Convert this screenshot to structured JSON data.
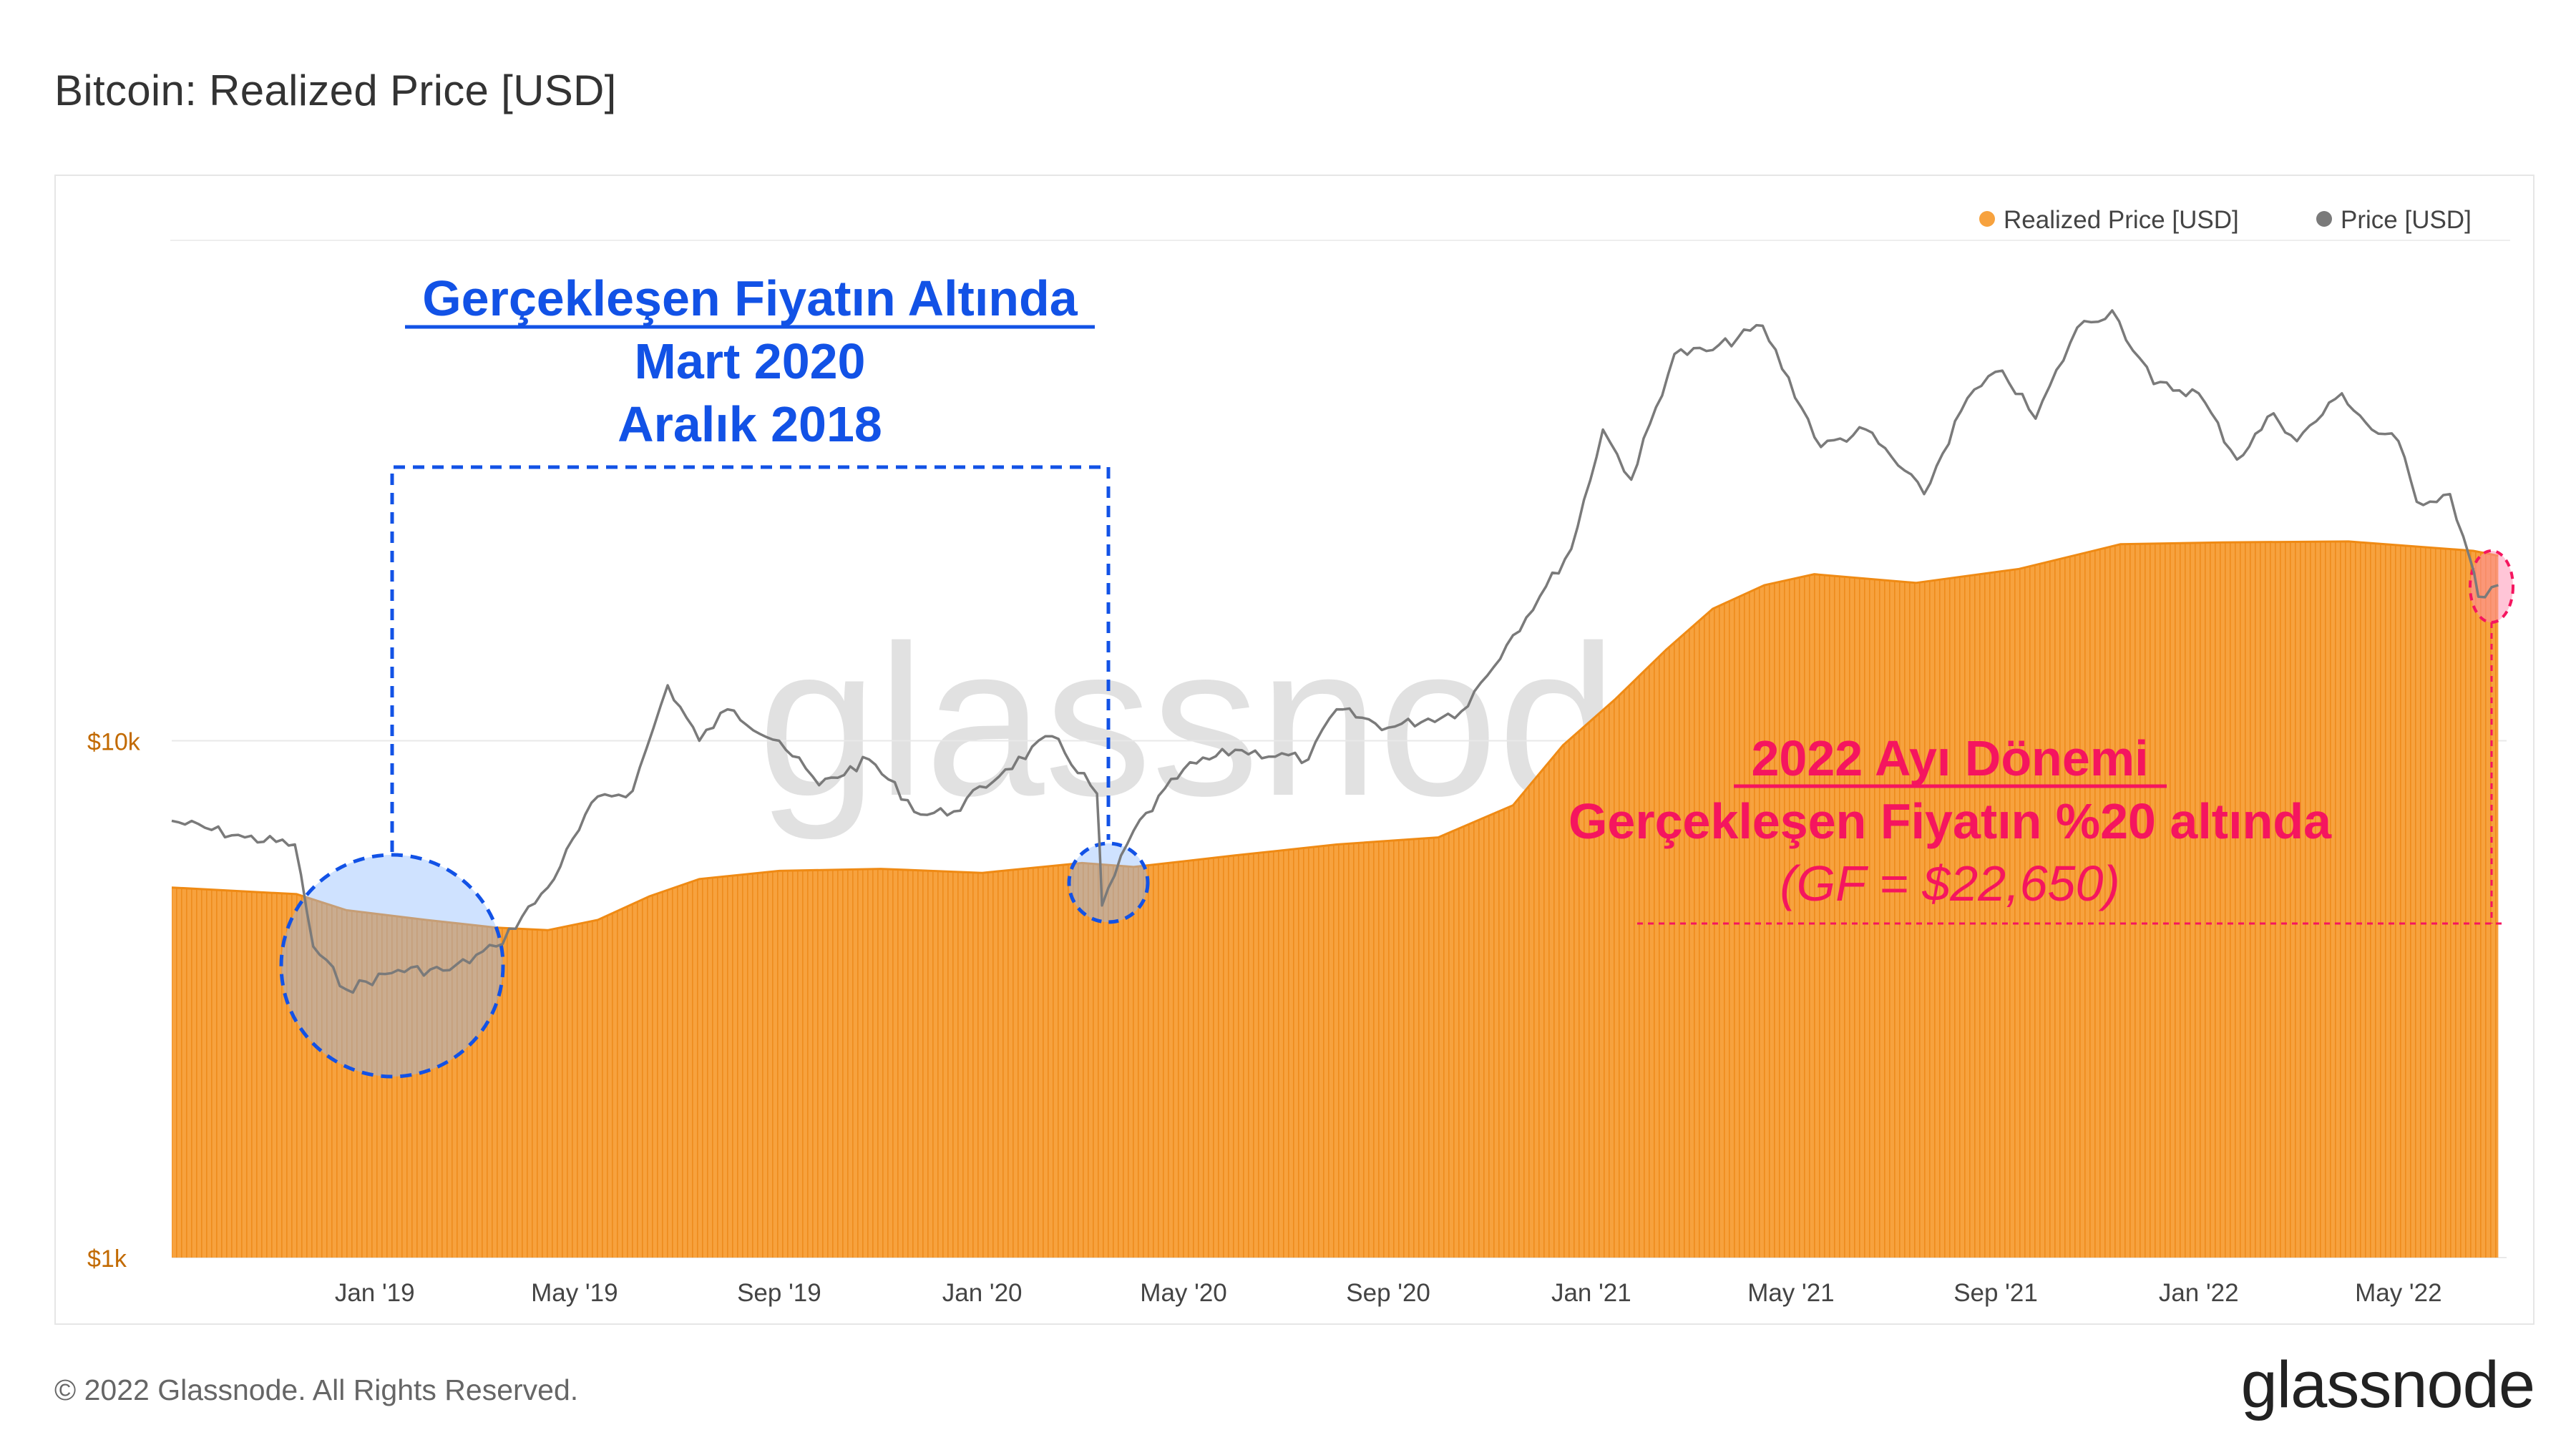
{
  "title": "Bitcoin: Realized Price [USD]",
  "footer": {
    "copyright": "© 2022 Glassnode. All Rights Reserved.",
    "logo": "glassnode",
    "watermark": "glassnode"
  },
  "colors": {
    "realized": "#f7a23e",
    "realized_stroke": "#ef8a14",
    "price": "#7a7a7a",
    "annotation_blue": "#1252e6",
    "annotation_pink": "#f5155f",
    "ytick": "#c26a00"
  },
  "chart_data": {
    "type": "area",
    "y_scale": "log",
    "ylim": [
      1000,
      90000
    ],
    "yticks": [
      {
        "value": 1000,
        "label": "$1k"
      },
      {
        "value": 10000,
        "label": "$10k"
      }
    ],
    "xlim": [
      "2018-09-01",
      "2022-07-05"
    ],
    "xticks": [
      {
        "date": "2019-01-01",
        "label": "Jan '19"
      },
      {
        "date": "2019-05-01",
        "label": "May '19"
      },
      {
        "date": "2019-09-01",
        "label": "Sep '19"
      },
      {
        "date": "2020-01-01",
        "label": "Jan '20"
      },
      {
        "date": "2020-05-01",
        "label": "May '20"
      },
      {
        "date": "2020-09-01",
        "label": "Sep '20"
      },
      {
        "date": "2021-01-01",
        "label": "Jan '21"
      },
      {
        "date": "2021-05-01",
        "label": "May '21"
      },
      {
        "date": "2021-09-01",
        "label": "Sep '21"
      },
      {
        "date": "2022-01-01",
        "label": "Jan '22"
      },
      {
        "date": "2022-05-01",
        "label": "May '22"
      }
    ],
    "legend_position": "top-right",
    "series": [
      {
        "name": "Realized Price [USD]",
        "style": "area",
        "points": [
          [
            "2018-09-01",
            5200
          ],
          [
            "2018-11-15",
            5050
          ],
          [
            "2018-12-15",
            4700
          ],
          [
            "2019-02-01",
            4500
          ],
          [
            "2019-03-15",
            4350
          ],
          [
            "2019-04-15",
            4300
          ],
          [
            "2019-05-15",
            4500
          ],
          [
            "2019-06-15",
            5000
          ],
          [
            "2019-07-15",
            5400
          ],
          [
            "2019-09-01",
            5600
          ],
          [
            "2019-11-01",
            5650
          ],
          [
            "2020-01-01",
            5550
          ],
          [
            "2020-03-01",
            5800
          ],
          [
            "2020-04-01",
            5700
          ],
          [
            "2020-06-01",
            6000
          ],
          [
            "2020-08-01",
            6300
          ],
          [
            "2020-10-01",
            6500
          ],
          [
            "2020-11-15",
            7500
          ],
          [
            "2020-12-15",
            9800
          ],
          [
            "2021-01-15",
            12000
          ],
          [
            "2021-02-15",
            15000
          ],
          [
            "2021-03-15",
            18000
          ],
          [
            "2021-04-15",
            20000
          ],
          [
            "2021-05-15",
            21000
          ],
          [
            "2021-07-15",
            20200
          ],
          [
            "2021-09-15",
            21500
          ],
          [
            "2021-11-15",
            24000
          ],
          [
            "2022-01-15",
            24200
          ],
          [
            "2022-04-01",
            24300
          ],
          [
            "2022-06-15",
            23300
          ],
          [
            "2022-06-30",
            22800
          ]
        ]
      },
      {
        "name": "Price [USD]",
        "style": "line",
        "points": [
          [
            "2018-09-01",
            7000
          ],
          [
            "2018-10-15",
            6500
          ],
          [
            "2018-11-14",
            6300
          ],
          [
            "2018-11-25",
            4000
          ],
          [
            "2018-12-15",
            3300
          ],
          [
            "2019-01-15",
            3600
          ],
          [
            "2019-02-15",
            3600
          ],
          [
            "2019-03-15",
            4000
          ],
          [
            "2019-04-15",
            5200
          ],
          [
            "2019-05-15",
            7800
          ],
          [
            "2019-06-05",
            8000
          ],
          [
            "2019-06-26",
            12800
          ],
          [
            "2019-07-15",
            10000
          ],
          [
            "2019-08-01",
            11500
          ],
          [
            "2019-09-01",
            10000
          ],
          [
            "2019-09-25",
            8200
          ],
          [
            "2019-10-25",
            9200
          ],
          [
            "2019-11-25",
            7200
          ],
          [
            "2019-12-15",
            7300
          ],
          [
            "2020-01-15",
            8800
          ],
          [
            "2020-02-12",
            10200
          ],
          [
            "2020-03-10",
            7900
          ],
          [
            "2020-03-13",
            4800
          ],
          [
            "2020-04-01",
            6700
          ],
          [
            "2020-05-01",
            8800
          ],
          [
            "2020-06-01",
            9600
          ],
          [
            "2020-07-15",
            9200
          ],
          [
            "2020-08-01",
            11500
          ],
          [
            "2020-09-01",
            10600
          ],
          [
            "2020-10-15",
            11400
          ],
          [
            "2020-11-15",
            16000
          ],
          [
            "2020-12-01",
            19000
          ],
          [
            "2020-12-20",
            23500
          ],
          [
            "2021-01-08",
            40000
          ],
          [
            "2021-01-25",
            32000
          ],
          [
            "2021-02-20",
            56000
          ],
          [
            "2021-03-15",
            57000
          ],
          [
            "2021-04-14",
            63500
          ],
          [
            "2021-05-19",
            37000
          ],
          [
            "2021-06-15",
            40000
          ],
          [
            "2021-07-20",
            30000
          ],
          [
            "2021-08-15",
            46000
          ],
          [
            "2021-09-05",
            52000
          ],
          [
            "2021-09-25",
            42000
          ],
          [
            "2021-10-20",
            63000
          ],
          [
            "2021-11-10",
            68000
          ],
          [
            "2021-12-05",
            49000
          ],
          [
            "2022-01-01",
            47000
          ],
          [
            "2022-01-24",
            35000
          ],
          [
            "2022-02-15",
            43000
          ],
          [
            "2022-03-01",
            38000
          ],
          [
            "2022-03-28",
            47000
          ],
          [
            "2022-04-15",
            40000
          ],
          [
            "2022-05-01",
            38000
          ],
          [
            "2022-05-12",
            29000
          ],
          [
            "2022-06-01",
            30000
          ],
          [
            "2022-06-13",
            22500
          ],
          [
            "2022-06-18",
            19000
          ],
          [
            "2022-06-30",
            20000
          ]
        ]
      }
    ],
    "annotations": {
      "left": {
        "title": "Gerçekleşen Fiyatın Altında",
        "line1": "Mart 2020",
        "line2": "Aralık 2018"
      },
      "right": {
        "title": "2022 Ayı Dönemi",
        "line1": "Gerçekleşen Fiyatın %20 altında",
        "line2": "(GF = $22,650)"
      }
    }
  }
}
